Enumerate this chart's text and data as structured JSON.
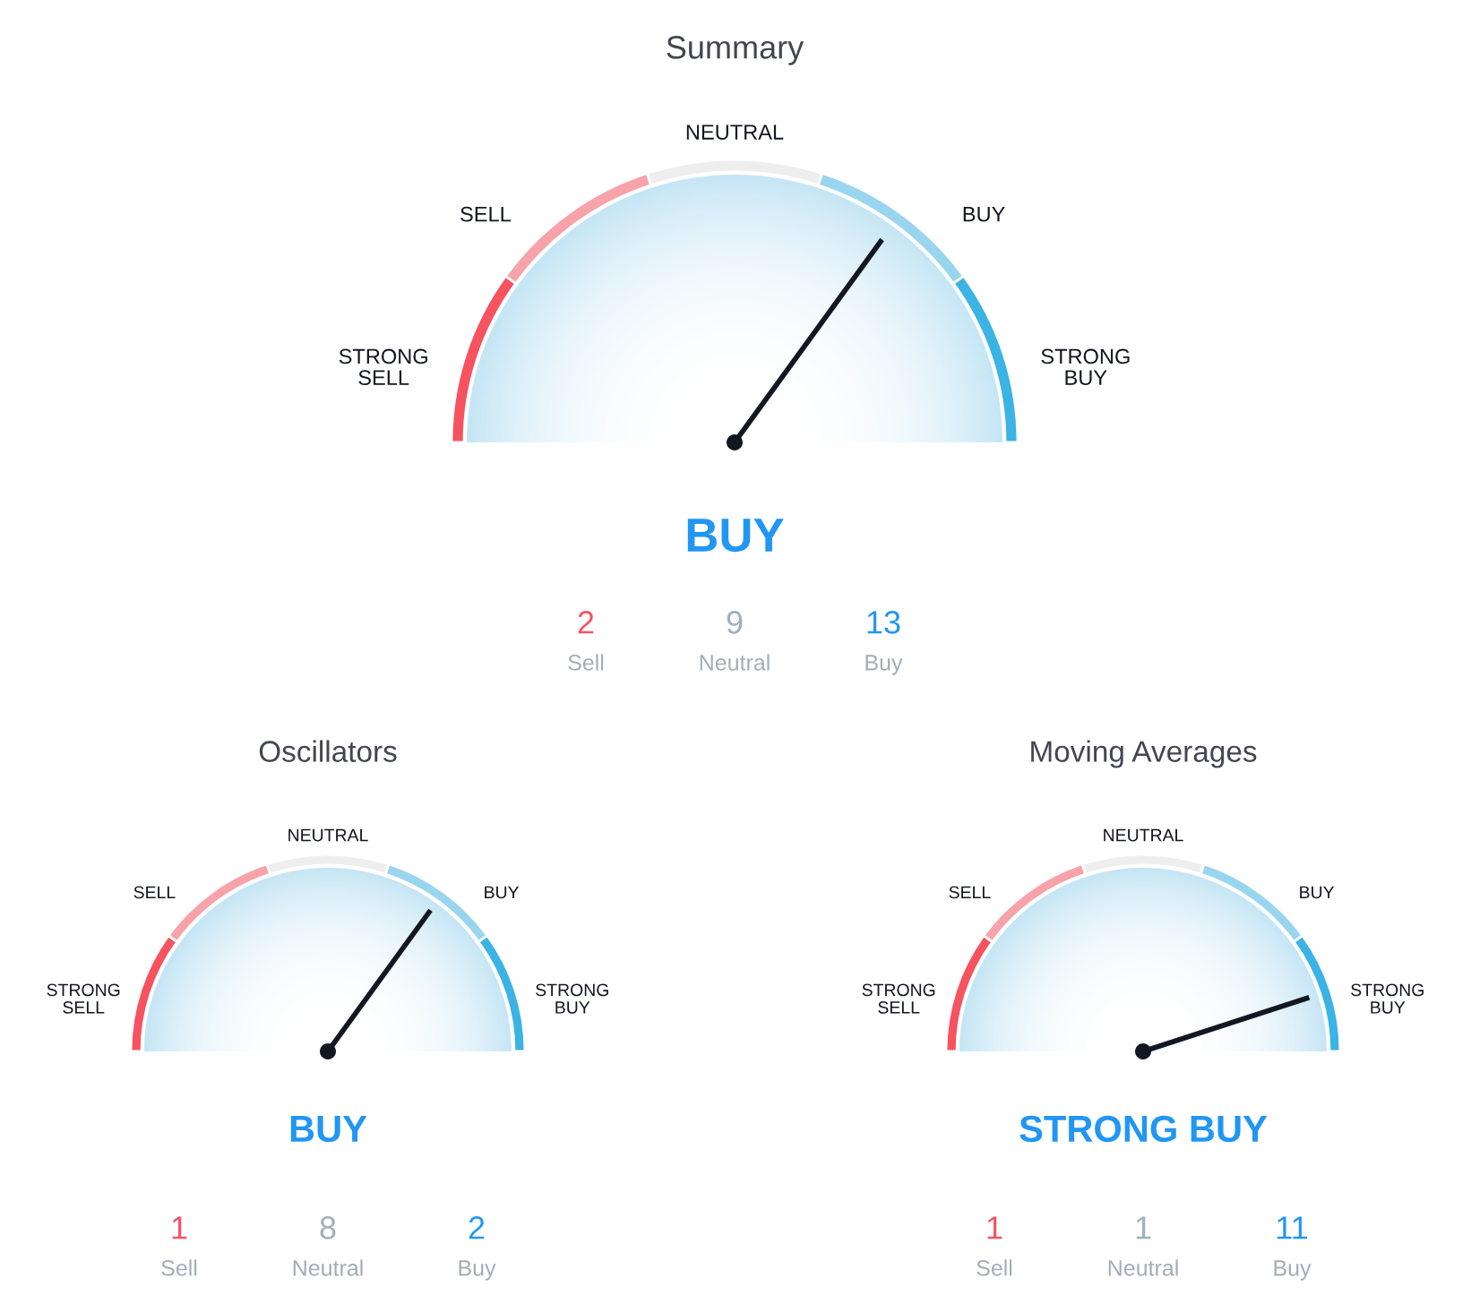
{
  "chart_data": [
    {
      "type": "donut",
      "title": "Summary",
      "categories": [
        "STRONG SELL",
        "SELL",
        "NEUTRAL",
        "BUY",
        "STRONG BUY"
      ],
      "values": [
        20,
        20,
        20,
        20,
        20
      ],
      "colors": [
        "#f7525f",
        "#f8a2aa",
        "#eeeeee",
        "#9ad5ef",
        "#3bb3e4"
      ],
      "needle": "BUY",
      "annotations": [
        "BUY",
        "2",
        "Sell",
        "9",
        "Neutral",
        "13",
        "Buy"
      ]
    },
    {
      "type": "donut",
      "title": "Oscillators",
      "categories": [
        "STRONG SELL",
        "SELL",
        "NEUTRAL",
        "BUY",
        "STRONG BUY"
      ],
      "values": [
        20,
        20,
        20,
        20,
        20
      ],
      "colors": [
        "#f7525f",
        "#f8a2aa",
        "#eeeeee",
        "#9ad5ef",
        "#3bb3e4"
      ],
      "needle": "BUY",
      "annotations": [
        "BUY",
        "1",
        "Sell",
        "8",
        "Neutral",
        "2",
        "Buy"
      ]
    },
    {
      "type": "donut",
      "title": "Moving Averages",
      "categories": [
        "STRONG SELL",
        "SELL",
        "NEUTRAL",
        "BUY",
        "STRONG BUY"
      ],
      "values": [
        20,
        20,
        20,
        20,
        20
      ],
      "colors": [
        "#f7525f",
        "#f8a2aa",
        "#eeeeee",
        "#9ad5ef",
        "#3bb3e4"
      ],
      "needle": "STRONG BUY",
      "annotations": [
        "STRONG BUY",
        "1",
        "Sell",
        "1",
        "Neutral",
        "11",
        "Buy"
      ]
    }
  ]
}
